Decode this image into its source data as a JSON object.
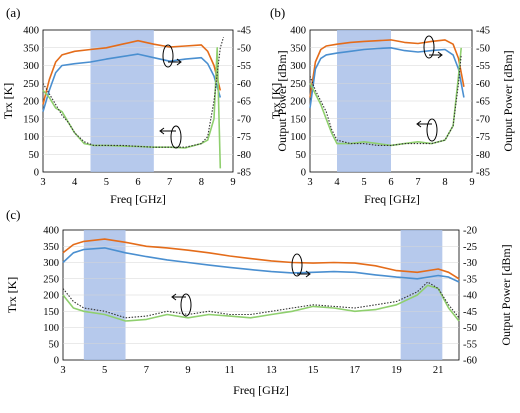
{
  "colors": {
    "orange": "#e46c1a",
    "blue": "#4a8fd0",
    "green": "#8fcf6e",
    "black_dotted": "#333333",
    "highlight": "#a9bfe9"
  },
  "chart_data": [
    {
      "panel_label": "(a)",
      "type": "line",
      "xlabel": "Freq [GHz]",
      "ylabel": "Trx [K]",
      "y2label": "Output Power [dBm]",
      "xlim": [
        3,
        9
      ],
      "ylim": [
        0,
        400
      ],
      "y2lim": [
        -85,
        -45
      ],
      "xticks": [
        3,
        4,
        5,
        6,
        7,
        8,
        9
      ],
      "yticks": [
        0,
        50,
        100,
        150,
        200,
        250,
        300,
        350,
        400
      ],
      "y2ticks": [
        -85,
        -80,
        -75,
        -70,
        -65,
        -60,
        -55,
        -50,
        -45
      ],
      "highlight": [
        4.5,
        6.5
      ],
      "series": [
        {
          "axis": "left",
          "color": "orange",
          "style": "solid",
          "x": [
            3.0,
            3.2,
            3.4,
            3.6,
            4.0,
            4.5,
            5.0,
            5.5,
            6.0,
            6.5,
            7.0,
            7.5,
            8.0,
            8.2,
            8.4,
            8.6
          ],
          "y": [
            190,
            260,
            310,
            330,
            340,
            345,
            350,
            360,
            370,
            360,
            352,
            355,
            358,
            340,
            300,
            230
          ]
        },
        {
          "axis": "left",
          "color": "blue",
          "style": "solid",
          "x": [
            3.0,
            3.2,
            3.4,
            3.6,
            4.0,
            4.5,
            5.0,
            5.5,
            6.0,
            6.5,
            7.0,
            7.5,
            8.0,
            8.2,
            8.4,
            8.6
          ],
          "y": [
            170,
            230,
            280,
            300,
            305,
            310,
            318,
            325,
            332,
            322,
            312,
            318,
            322,
            305,
            270,
            210
          ]
        },
        {
          "axis": "right",
          "color": "green",
          "style": "solid",
          "x": [
            3.0,
            3.2,
            3.4,
            3.6,
            3.8,
            4.0,
            4.3,
            4.6,
            5.0,
            5.5,
            6.0,
            6.5,
            7.0,
            7.5,
            8.0,
            8.2,
            8.4,
            8.5,
            8.6
          ],
          "y": [
            -62,
            -64,
            -67,
            -68,
            -71,
            -74,
            -77,
            -77.5,
            -77.5,
            -77.7,
            -77.8,
            -78,
            -78,
            -78.2,
            -77,
            -76,
            -70,
            -50,
            -84
          ]
        },
        {
          "axis": "right",
          "color": "black_dotted",
          "style": "dotted",
          "x": [
            3.0,
            3.2,
            3.4,
            3.6,
            3.8,
            4.0,
            4.3,
            4.6,
            5.0,
            5.5,
            6.0,
            6.5,
            7.0,
            7.5,
            8.0,
            8.2,
            8.4,
            8.6,
            8.7
          ],
          "y": [
            -60,
            -63,
            -66,
            -69,
            -71,
            -74,
            -76.5,
            -77.5,
            -77.5,
            -77.5,
            -77.8,
            -78,
            -78,
            -78,
            -77,
            -75,
            -65,
            -50,
            -47
          ]
        }
      ]
    },
    {
      "panel_label": "(b)",
      "type": "line",
      "xlabel": "Freq [GHz]",
      "ylabel": "Trx [K]",
      "y2label": "Output Power [dBm]",
      "xlim": [
        3,
        9
      ],
      "ylim": [
        0,
        400
      ],
      "y2lim": [
        -85,
        -45
      ],
      "xticks": [
        3,
        4,
        5,
        6,
        7,
        8,
        9
      ],
      "yticks": [
        0,
        50,
        100,
        150,
        200,
        250,
        300,
        350,
        400
      ],
      "y2ticks": [
        -85,
        -80,
        -75,
        -70,
        -65,
        -60,
        -55,
        -50,
        -45
      ],
      "highlight": [
        4.0,
        6.0
      ],
      "series": [
        {
          "axis": "left",
          "color": "orange",
          "style": "solid",
          "x": [
            3.0,
            3.2,
            3.4,
            3.6,
            4.0,
            4.5,
            5.0,
            5.5,
            6.0,
            6.5,
            7.0,
            7.5,
            8.0,
            8.3,
            8.5,
            8.7
          ],
          "y": [
            210,
            310,
            345,
            355,
            360,
            365,
            368,
            370,
            372,
            365,
            362,
            368,
            372,
            360,
            320,
            240
          ]
        },
        {
          "axis": "left",
          "color": "blue",
          "style": "solid",
          "x": [
            3.0,
            3.2,
            3.4,
            3.6,
            4.0,
            4.5,
            5.0,
            5.5,
            6.0,
            6.5,
            7.0,
            7.5,
            8.0,
            8.3,
            8.5,
            8.7
          ],
          "y": [
            180,
            290,
            320,
            330,
            335,
            340,
            345,
            348,
            350,
            342,
            338,
            342,
            345,
            330,
            290,
            210
          ]
        },
        {
          "axis": "right",
          "color": "green",
          "style": "solid",
          "x": [
            3.0,
            3.2,
            3.4,
            3.6,
            3.8,
            4.0,
            4.5,
            5.0,
            5.5,
            6.0,
            6.5,
            7.0,
            7.5,
            8.0,
            8.3,
            8.5,
            8.6
          ],
          "y": [
            -60,
            -63,
            -66,
            -70,
            -74,
            -77,
            -77,
            -76.5,
            -77,
            -77.5,
            -77,
            -76.5,
            -77,
            -76,
            -72,
            -58,
            -50
          ]
        },
        {
          "axis": "right",
          "color": "black_dotted",
          "style": "dotted",
          "x": [
            3.0,
            3.2,
            3.4,
            3.6,
            3.8,
            4.0,
            4.5,
            5.0,
            5.5,
            6.0,
            6.5,
            7.0,
            7.5,
            8.0,
            8.3,
            8.5,
            8.6
          ],
          "y": [
            -58,
            -62,
            -65,
            -68,
            -73,
            -76,
            -77,
            -77,
            -77.5,
            -77.5,
            -77,
            -77,
            -77,
            -76,
            -72,
            -60,
            -52
          ]
        }
      ]
    },
    {
      "panel_label": "(c)",
      "type": "line",
      "xlabel": "Freq [GHz]",
      "ylabel": "Trx [K]",
      "y2label": "Output Power [dBm]",
      "xlim": [
        3,
        22
      ],
      "ylim": [
        0,
        400
      ],
      "y2lim": [
        -60,
        -20
      ],
      "xticks": [
        3,
        5,
        7,
        9,
        11,
        13,
        15,
        17,
        19,
        21
      ],
      "yticks": [
        0,
        50,
        100,
        150,
        200,
        250,
        300,
        350,
        400
      ],
      "y2ticks": [
        -60,
        -55,
        -50,
        -45,
        -40,
        -35,
        -30,
        -25,
        -20
      ],
      "highlight_ranges": [
        [
          4,
          6
        ],
        [
          19.2,
          21.2
        ]
      ],
      "series": [
        {
          "axis": "left",
          "color": "orange",
          "style": "solid",
          "x": [
            3,
            3.5,
            4,
            5,
            6,
            7,
            8,
            9,
            10,
            11,
            12,
            13,
            14,
            15,
            16,
            17,
            18,
            19,
            20,
            21,
            21.5,
            22
          ],
          "y": [
            330,
            355,
            365,
            372,
            362,
            350,
            345,
            338,
            330,
            320,
            312,
            305,
            300,
            298,
            300,
            298,
            290,
            275,
            270,
            280,
            270,
            250
          ]
        },
        {
          "axis": "left",
          "color": "blue",
          "style": "solid",
          "x": [
            3,
            3.5,
            4,
            5,
            6,
            7,
            8,
            9,
            10,
            11,
            12,
            13,
            14,
            15,
            16,
            17,
            18,
            19,
            20,
            21,
            21.5,
            22
          ],
          "y": [
            300,
            330,
            340,
            345,
            330,
            318,
            308,
            300,
            292,
            285,
            278,
            272,
            268,
            270,
            272,
            270,
            262,
            255,
            250,
            260,
            255,
            240
          ]
        },
        {
          "axis": "right",
          "color": "green",
          "style": "solid",
          "x": [
            3,
            3.5,
            4,
            5,
            6,
            7,
            8,
            9,
            10,
            11,
            12,
            13,
            14,
            15,
            16,
            17,
            18,
            19,
            20,
            20.5,
            21,
            21.5,
            22
          ],
          "y": [
            -40,
            -44,
            -45,
            -46,
            -48,
            -47.5,
            -46,
            -47,
            -46,
            -46.5,
            -47,
            -46,
            -45,
            -43.5,
            -44,
            -45,
            -44.5,
            -43,
            -40,
            -37,
            -38,
            -44,
            -48
          ]
        },
        {
          "axis": "right",
          "color": "black_dotted",
          "style": "dotted",
          "x": [
            3,
            3.5,
            4,
            5,
            6,
            7,
            8,
            9,
            10,
            11,
            12,
            13,
            14,
            15,
            16,
            17,
            18,
            19,
            20,
            20.5,
            21,
            21.5,
            22
          ],
          "y": [
            -38,
            -42,
            -44,
            -45,
            -47,
            -46.5,
            -45,
            -46,
            -45,
            -46,
            -46,
            -45,
            -44,
            -43,
            -43.5,
            -44,
            -43,
            -42,
            -39,
            -36,
            -38,
            -43,
            -47
          ]
        }
      ]
    }
  ]
}
